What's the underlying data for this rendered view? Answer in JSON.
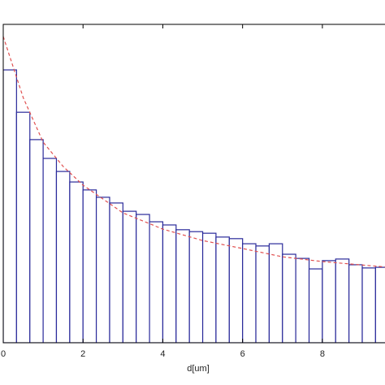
{
  "chart_data": {
    "type": "histogram",
    "xlabel": "d[um]",
    "bins": [
      0,
      0.333,
      0.667,
      1,
      1.333,
      1.667,
      2,
      2.333,
      2.667,
      3,
      3.333,
      3.667,
      4,
      4.333,
      4.667,
      5,
      5.333,
      5.667,
      6,
      6.333,
      6.667,
      7,
      7.333,
      7.667,
      8,
      8.333,
      8.667,
      9,
      9.333,
      9.667
    ],
    "counts": [
      85.7,
      72.4,
      63.8,
      57.9,
      53.8,
      50.5,
      48.0,
      45.7,
      43.9,
      41.3,
      40.3,
      38.0,
      37.0,
      35.5,
      34.9,
      34.4,
      33.2,
      32.7,
      31.1,
      30.4,
      31.1,
      27.8,
      26.5,
      23.2,
      25.8,
      26.3,
      24.5,
      23.5,
      23.7
    ],
    "color": "#2a2a9a",
    "fit": {
      "color": "#e05050",
      "x": [
        0,
        0.2,
        0.5,
        1,
        1.5,
        2,
        3,
        4,
        5,
        6,
        7,
        8,
        9.67
      ],
      "y": [
        96.2,
        88.5,
        77,
        63,
        55.4,
        49.5,
        40.8,
        35.7,
        32.1,
        29.6,
        27,
        25.5,
        23.7
      ]
    },
    "xlim": [
      0,
      9.57
    ],
    "xticks": [
      0,
      2,
      4,
      6,
      8
    ],
    "ylim": [
      0,
      100
    ]
  }
}
